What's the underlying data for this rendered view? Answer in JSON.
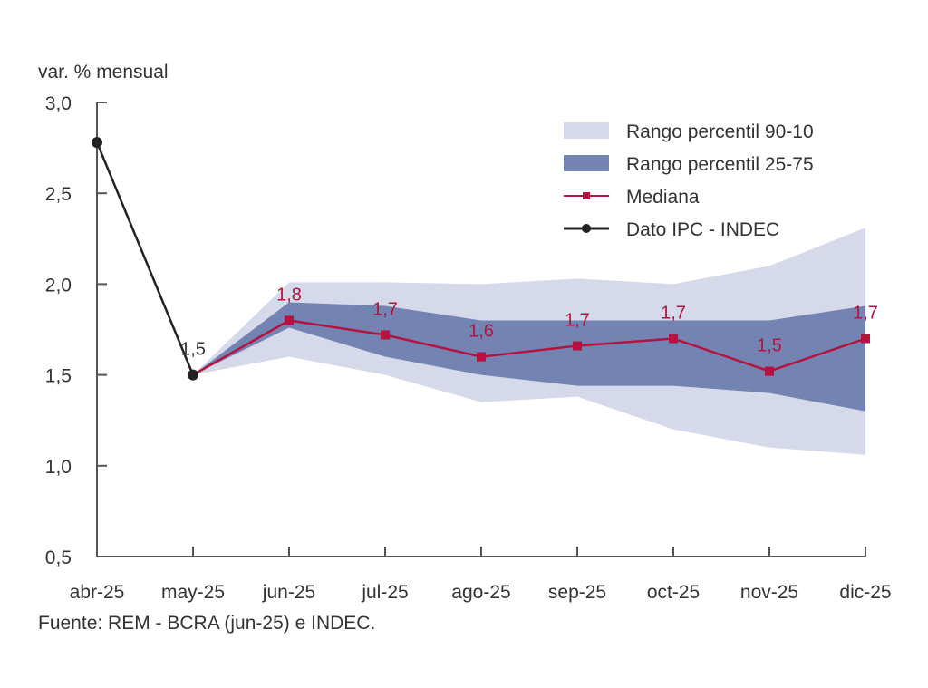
{
  "chart_data": {
    "type": "line",
    "title": "",
    "ylabel": "var. % mensual",
    "xlabel": "",
    "ylim": [
      0.5,
      3.0
    ],
    "yticks": [
      0.5,
      1.0,
      1.5,
      2.0,
      2.5,
      3.0
    ],
    "ytick_labels": [
      "0,5",
      "1,0",
      "1,5",
      "2,0",
      "2,5",
      "3,0"
    ],
    "categories": [
      "abr-25",
      "may-25",
      "jun-25",
      "jul-25",
      "ago-25",
      "sep-25",
      "oct-25",
      "nov-25",
      "dic-25"
    ],
    "grid": false,
    "legend_position": "top-right",
    "colors": {
      "band_90_10": "#d5d9e9",
      "band_25_75": "#7384b3",
      "median": "#b5123f",
      "ipc": "#222222",
      "axis": "#555555"
    },
    "series": [
      {
        "name": "Rango percentil 90-10",
        "kind": "band",
        "upper": [
          null,
          1.5,
          2.01,
          2.01,
          2.0,
          2.03,
          2.0,
          2.1,
          2.31
        ],
        "lower": [
          null,
          1.5,
          1.6,
          1.5,
          1.35,
          1.38,
          1.2,
          1.1,
          1.06
        ]
      },
      {
        "name": "Rango percentil 25-75",
        "kind": "band",
        "upper": [
          null,
          1.5,
          1.9,
          1.88,
          1.8,
          1.8,
          1.8,
          1.8,
          1.88
        ],
        "lower": [
          null,
          1.5,
          1.76,
          1.6,
          1.5,
          1.44,
          1.44,
          1.4,
          1.3
        ]
      },
      {
        "name": "Mediana",
        "kind": "line",
        "marker": "square",
        "values": [
          null,
          1.5,
          1.8,
          1.72,
          1.6,
          1.66,
          1.7,
          1.52,
          1.7
        ],
        "labels": [
          null,
          null,
          "1,8",
          "1,7",
          "1,6",
          "1,7",
          "1,7",
          "1,5",
          "1,7"
        ]
      },
      {
        "name": "Dato IPC - INDEC",
        "kind": "line",
        "marker": "circle",
        "values": [
          2.78,
          1.5,
          null,
          null,
          null,
          null,
          null,
          null,
          null
        ],
        "labels": [
          null,
          "1,5",
          null,
          null,
          null,
          null,
          null,
          null,
          null
        ]
      }
    ],
    "source": "Fuente: REM - BCRA (jun-25) e INDEC."
  }
}
